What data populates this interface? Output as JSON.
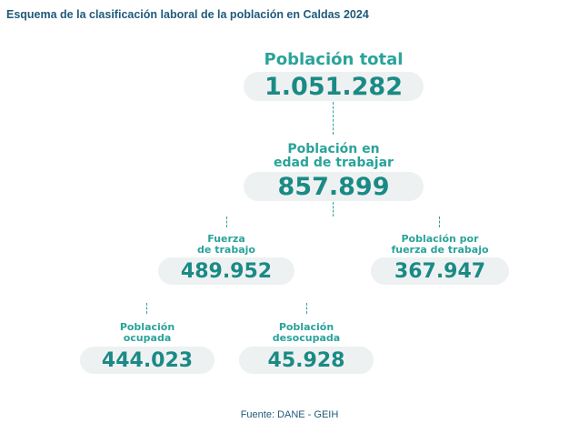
{
  "title": "Esquema de la clasificación laboral de la población en Caldas 2024",
  "nodes": {
    "total": {
      "label": "Población total",
      "value": "1.051.282"
    },
    "pet": {
      "label": "Población en\nedad de trabajar",
      "value": "857.899"
    },
    "fuerza": {
      "label": "Fuerza\nde trabajo",
      "value": "489.952"
    },
    "fuera": {
      "label": "Población por\nfuerza de trabajo",
      "value": "367.947"
    },
    "ocupada": {
      "label": "Población\nocupada",
      "value": "444.023"
    },
    "desocupada": {
      "label": "Población\ndesocupada",
      "value": "45.928"
    }
  },
  "source": "Fuente: DANE - GEIH",
  "colors": {
    "title": "#1f5a7a",
    "label": "#2aa39a",
    "value": "#1a8a85",
    "pill": "#eef1f1"
  }
}
